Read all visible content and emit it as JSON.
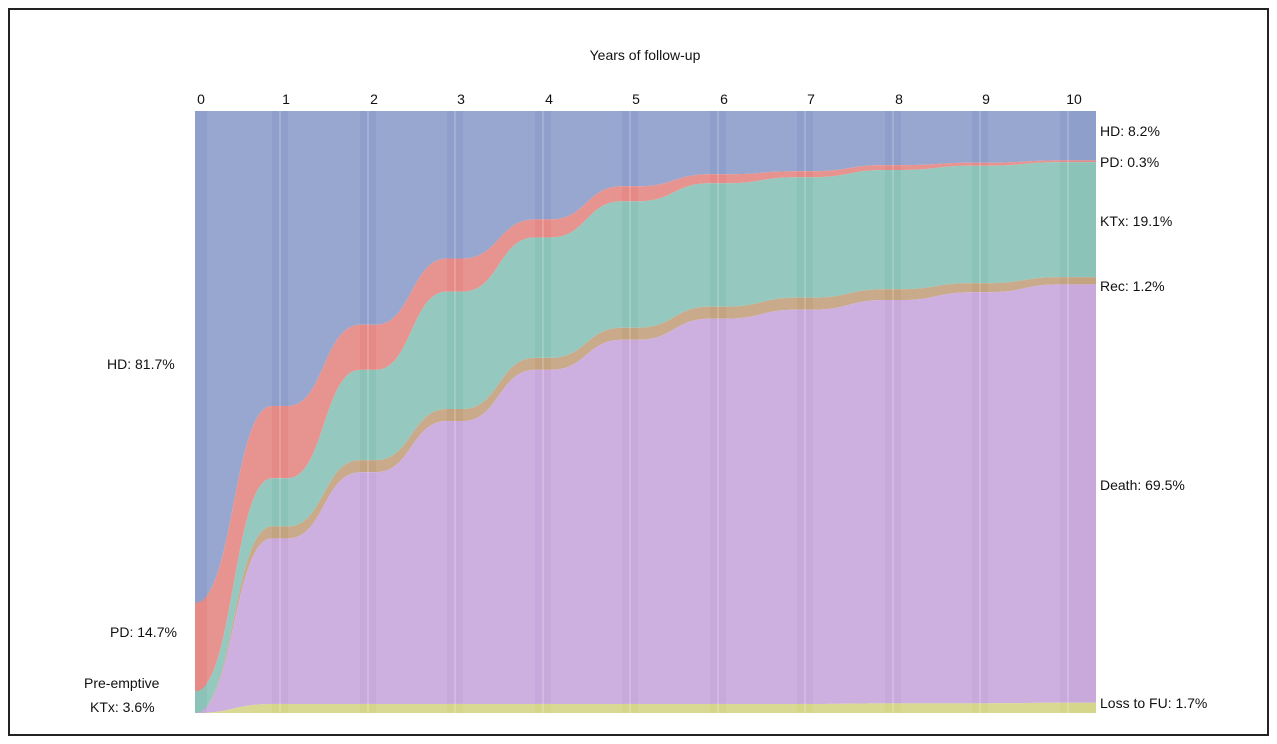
{
  "chart_data": {
    "type": "area",
    "title": "Years of follow-up",
    "x_ticks": [
      "0",
      "1",
      "2",
      "3",
      "4",
      "5",
      "6",
      "7",
      "8",
      "9",
      "10"
    ],
    "colors": {
      "HD": "#8f9fcb",
      "PD": "#e58a86",
      "KTx": "#8cc3b8",
      "Rec": "#c4a380",
      "Death": "#c9a9dc",
      "LossFU": "#d6d68a"
    },
    "layers": [
      {
        "key": "HD",
        "values": [
          81.7,
          49.0,
          35.5,
          24.5,
          18.0,
          12.5,
          10.5,
          10.0,
          9.0,
          8.6,
          8.2
        ]
      },
      {
        "key": "PD",
        "values": [
          14.7,
          12.0,
          7.5,
          5.5,
          3.0,
          2.5,
          1.5,
          1.0,
          0.8,
          0.5,
          0.3
        ]
      },
      {
        "key": "KTx",
        "values": [
          3.6,
          8.0,
          15.0,
          19.5,
          20.0,
          21.0,
          20.5,
          20.0,
          19.8,
          19.5,
          19.1
        ]
      },
      {
        "key": "Rec",
        "values": [
          0.0,
          2.0,
          2.0,
          2.0,
          2.0,
          2.0,
          2.0,
          2.0,
          1.8,
          1.5,
          1.2
        ]
      },
      {
        "key": "Death",
        "values": [
          0.0,
          27.5,
          38.5,
          47.0,
          55.5,
          60.5,
          64.0,
          65.5,
          67.0,
          68.3,
          69.5
        ]
      },
      {
        "key": "LossFU",
        "values": [
          0.0,
          1.5,
          1.5,
          1.5,
          1.5,
          1.5,
          1.5,
          1.5,
          1.6,
          1.6,
          1.7
        ]
      }
    ],
    "left_labels": {
      "hd": "HD: 81.7%",
      "pd": "PD: 14.7%",
      "pre1": "Pre-emptive",
      "pre2": "KTx: 3.6%"
    },
    "right_labels": {
      "hd": "HD: 8.2%",
      "pd": "PD: 0.3%",
      "ktx": "KTx: 19.1%",
      "rec": "Rec: 1.2%",
      "death": "Death: 69.5%",
      "loss": "Loss to FU: 1.7%"
    }
  }
}
